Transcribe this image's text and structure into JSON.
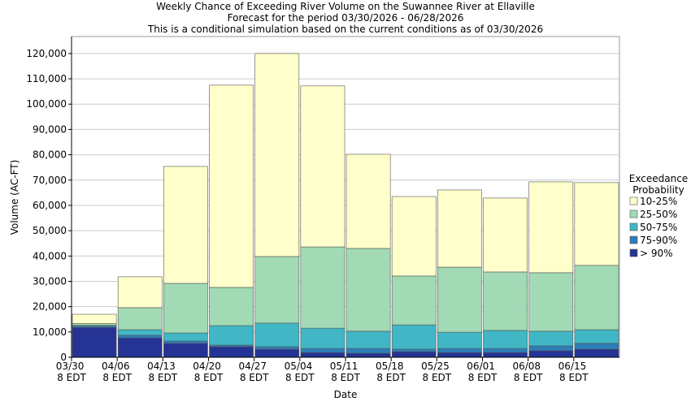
{
  "chart_data": {
    "type": "stacked_bar",
    "title": "Weekly Chance of Exceeding River Volume on the Suwannee River at Ellaville",
    "subtitle": "Forecast for the period 03/30/2026 - 06/28/2026",
    "note": "This is a conditional simulation based on the current conditions as of 03/30/2026",
    "xlabel": "Date",
    "ylabel": "Volume (AC-FT)",
    "categories": [
      "03/30 8 EDT",
      "04/06 8 EDT",
      "04/13 8 EDT",
      "04/20 8 EDT",
      "04/27 8 EDT",
      "05/04 8 EDT",
      "05/11 8 EDT",
      "05/18 8 EDT",
      "05/25 8 EDT",
      "06/01 8 EDT",
      "06/08 8 EDT",
      "06/15 8 EDT"
    ],
    "series": [
      {
        "name": "> 90%",
        "color": "#253494",
        "values": [
          11800,
          7700,
          5500,
          4200,
          3200,
          1900,
          1600,
          2200,
          1900,
          1900,
          2600,
          3200
        ]
      },
      {
        "name": "75-90%",
        "color": "#2c7fb8",
        "values": [
          500,
          1000,
          900,
          600,
          1000,
          1600,
          1900,
          1000,
          1600,
          1600,
          1900,
          2300
        ]
      },
      {
        "name": "50-75%",
        "color": "#41b6c4",
        "values": [
          300,
          2200,
          3200,
          7700,
          9300,
          8000,
          6800,
          9600,
          6400,
          7100,
          5800,
          5400
        ]
      },
      {
        "name": "25-50%",
        "color": "#a1dab4",
        "values": [
          700,
          8700,
          19600,
          15100,
          26300,
          32100,
          32700,
          19300,
          25700,
          23100,
          23100,
          25400
        ]
      },
      {
        "name": "10-25%",
        "color": "#ffffcc",
        "values": [
          3700,
          12200,
          46200,
          79900,
          80200,
          63600,
          37200,
          31400,
          30500,
          29200,
          35900,
          32700
        ]
      }
    ],
    "legend_title": [
      "Exceedance",
      "Probability"
    ],
    "ylim": [
      0,
      126700
    ],
    "yticks": [
      0,
      {
        "value": 10000,
        "label": "10,000"
      },
      {
        "value": 20000,
        "label": "20,000"
      },
      {
        "value": 30000,
        "label": "30,000"
      },
      {
        "value": 40000,
        "label": "40,000"
      },
      {
        "value": 50000,
        "label": "50,000"
      },
      {
        "value": 60000,
        "label": "60,000"
      },
      {
        "value": 70000,
        "label": "70,000"
      },
      {
        "value": 80000,
        "label": "80,000"
      },
      {
        "value": 90000,
        "label": "90,000"
      },
      {
        "value": 100000,
        "label": "100,000"
      },
      {
        "value": 110000,
        "label": "110,000"
      },
      {
        "value": 120000,
        "label": "120,000"
      }
    ],
    "grid": true
  }
}
